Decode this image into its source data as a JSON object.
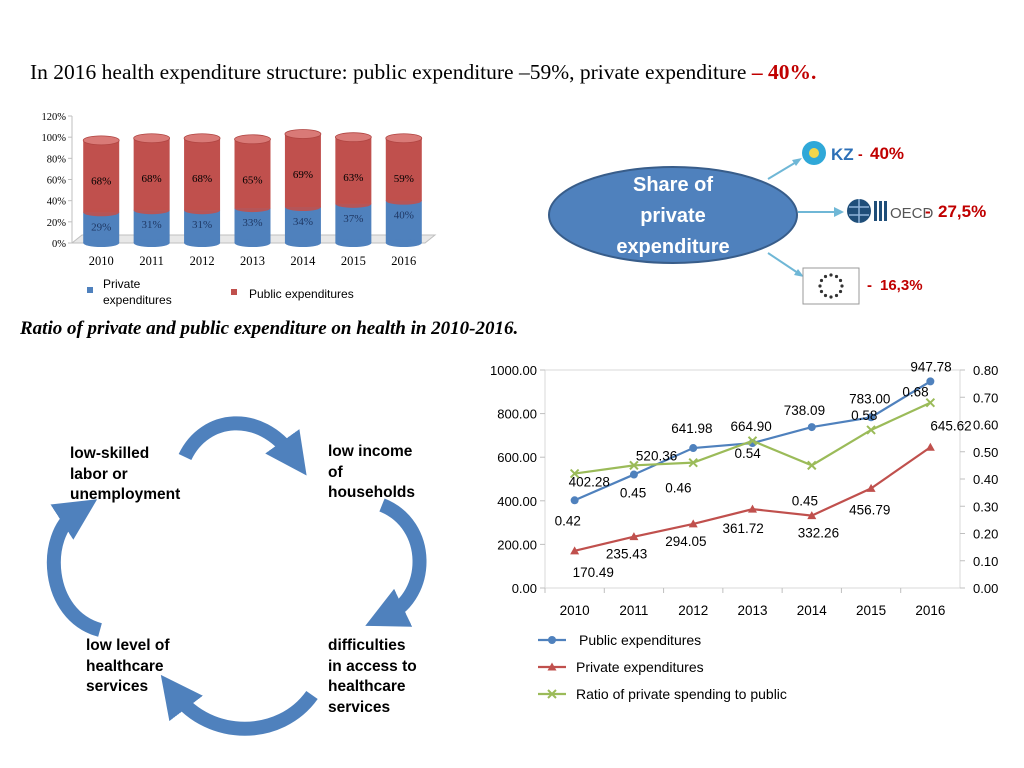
{
  "header": {
    "title_main": "In 2016 health expenditure structure: public expenditure –59%, private expenditure ",
    "title_highlight": "– 40%."
  },
  "subtitle": "Ratio of private and public expenditure on health in 2010-2016.",
  "colors": {
    "public_bar": "#c0504d",
    "private_bar": "#4f81bd",
    "line_public": "#4f81bd",
    "line_private": "#c0504d",
    "line_ratio": "#9bbb59",
    "ellipse": "#4f81bd",
    "arrow": "#4f81bd",
    "accent_red": "#c00000"
  },
  "chart_data": [
    {
      "type": "bar",
      "stacked": true,
      "percent": true,
      "categories": [
        "2010",
        "2011",
        "2012",
        "2013",
        "2014",
        "2015",
        "2016"
      ],
      "series": [
        {
          "name": "Private expenditures",
          "values": [
            29,
            31,
            31,
            33,
            34,
            37,
            40
          ],
          "labels": [
            "29%",
            "31%",
            "31%",
            "33%",
            "34%",
            "37%",
            "40%"
          ]
        },
        {
          "name": "Public expenditures",
          "values": [
            68,
            68,
            68,
            65,
            69,
            63,
            59
          ],
          "labels": [
            "68%",
            "68%",
            "68%",
            "65%",
            "69%",
            "63%",
            "59%"
          ]
        }
      ],
      "ylim": [
        0,
        120
      ],
      "yticks": [
        "0%",
        "20%",
        "40%",
        "60%",
        "80%",
        "100%",
        "120%"
      ],
      "legend": [
        "Private\nexpenditures",
        "Public expenditures"
      ],
      "legend_position": "bottom"
    },
    {
      "type": "line",
      "categories": [
        "2010",
        "2011",
        "2012",
        "2013",
        "2014",
        "2015",
        "2016"
      ],
      "series": [
        {
          "name": "Public expenditures",
          "axis": "left",
          "values": [
            402.28,
            520.36,
            641.98,
            664.9,
            738.09,
            783.0,
            947.78
          ],
          "labels": [
            "402.28",
            "520.36",
            "641.98",
            "664.90",
            "738.09",
            "783.00",
            "947.78"
          ]
        },
        {
          "name": "Private expenditures",
          "axis": "left",
          "values": [
            170.49,
            235.43,
            294.05,
            361.72,
            332.26,
            456.79,
            645.62
          ],
          "labels": [
            "170.49",
            "235.43",
            "294.05",
            "361.72",
            "332.26",
            "456.79",
            "645.62"
          ]
        },
        {
          "name": "Ratio of private spending to public",
          "axis": "right",
          "values": [
            0.42,
            0.45,
            0.46,
            0.54,
            0.45,
            0.58,
            0.68
          ],
          "labels": [
            "0.42",
            "0.45",
            "0.46",
            "0.54",
            "0.45",
            "0.58",
            "0.68"
          ]
        }
      ],
      "ylim_left": [
        0,
        1000
      ],
      "yticks_left": [
        "0.00",
        "200.00",
        "400.00",
        "600.00",
        "800.00",
        "1000.00"
      ],
      "ylim_right": [
        0,
        0.8
      ],
      "yticks_right": [
        "0.00",
        "0.10",
        "0.20",
        "0.30",
        "0.40",
        "0.50",
        "0.60",
        "0.70",
        "0.80"
      ],
      "legend_position": "bottom"
    }
  ],
  "share": {
    "label": "Share of\nprivate\nexpenditure",
    "items": [
      {
        "badge": "KZ",
        "value": "40%",
        "prefix": "- "
      },
      {
        "badge": "OECD",
        "value": "27,5%",
        "prefix": "- "
      },
      {
        "badge": "",
        "value": "16,3%",
        "prefix": "- "
      }
    ]
  },
  "cycle": {
    "nodes": [
      "low-skilled\nlabor or\nunemployment",
      "low income\nof\nhouseholds",
      "difficulties\nin access to\nhealthcare\nservices",
      "low level of\nhealthcare\nservices"
    ]
  }
}
